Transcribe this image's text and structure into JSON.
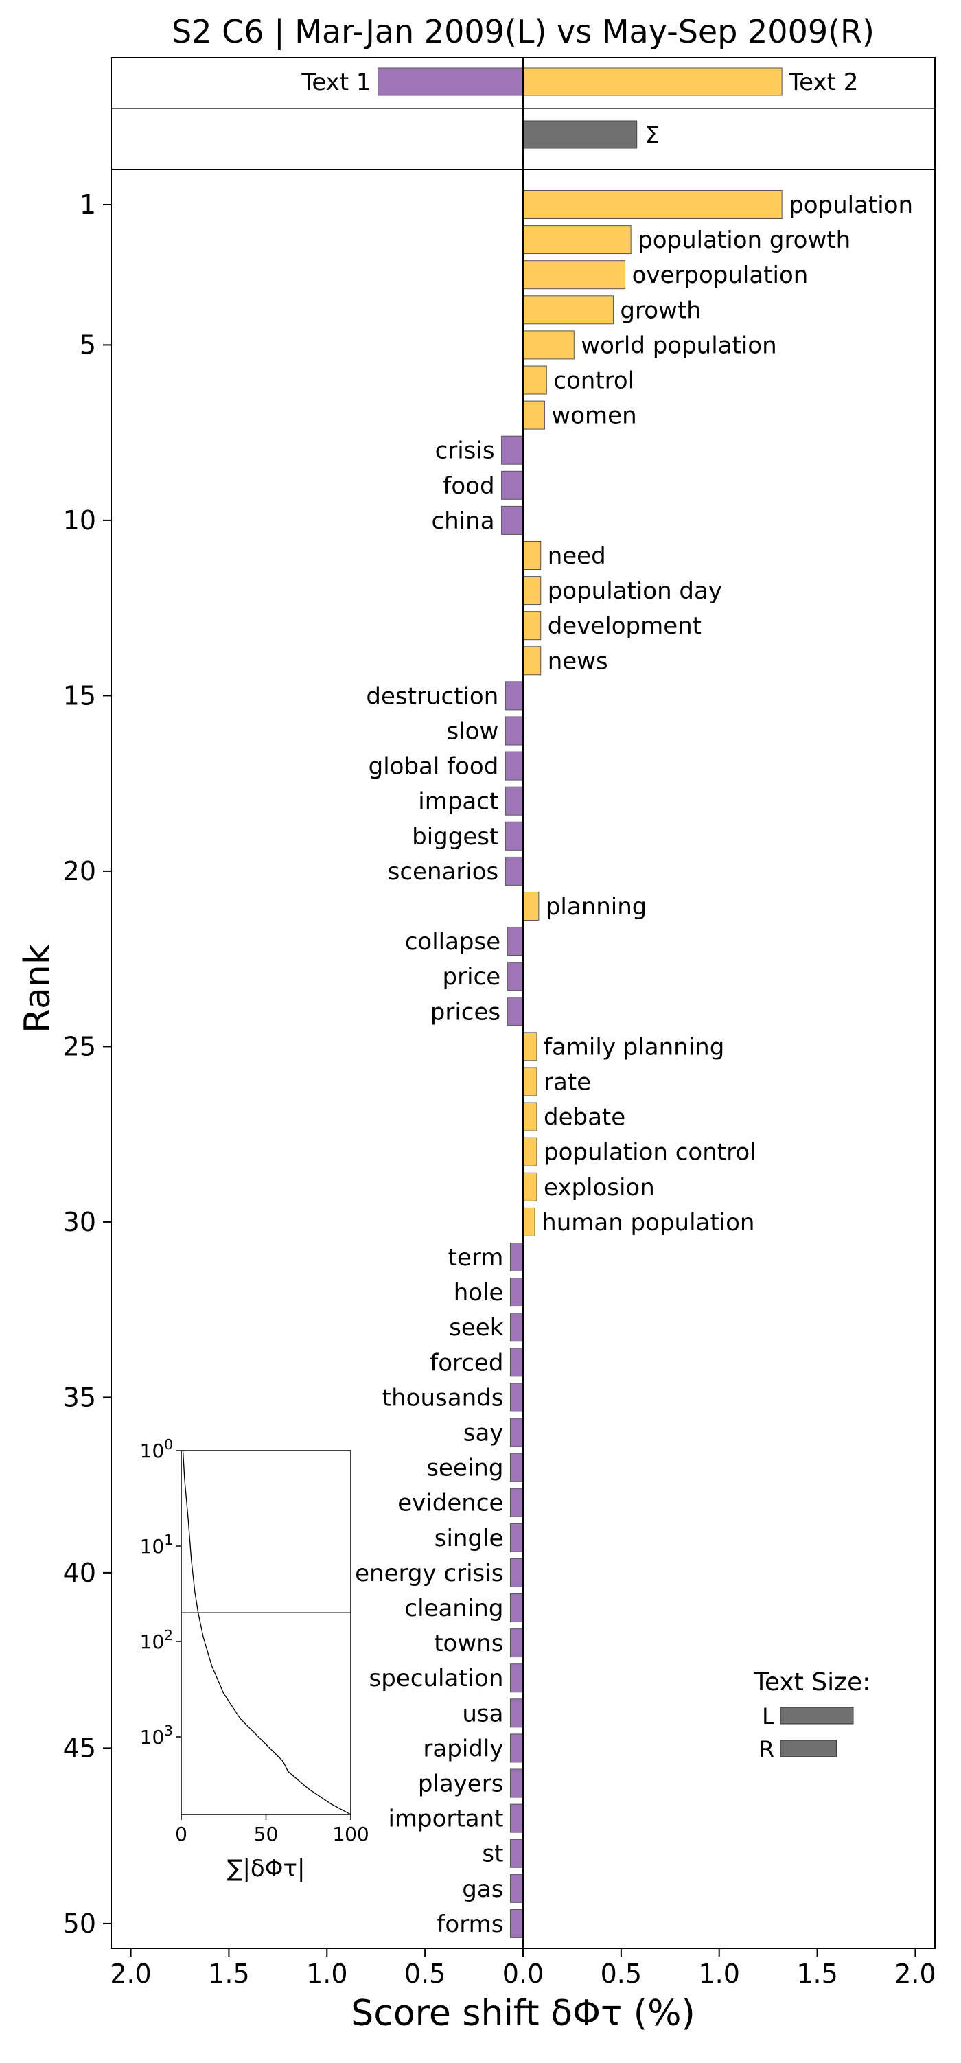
{
  "chart_data": {
    "type": "bar",
    "title": "S2 C6 | Mar-Jan 2009(L) vs May-Sep 2009(R)",
    "xlabel": "Score shift δΦτ (%)",
    "ylabel": "Rank",
    "xlim": [
      -2.1,
      2.1
    ],
    "x_ticks": [
      -2.0,
      -1.5,
      -1.0,
      -0.5,
      0.0,
      0.5,
      1.0,
      1.5,
      2.0
    ],
    "x_tick_labels": [
      "2.0",
      "1.5",
      "1.0",
      "0.5",
      "0.0",
      "0.5",
      "1.0",
      "1.5",
      "2.0"
    ],
    "y_ticks": [
      1,
      5,
      10,
      15,
      20,
      25,
      30,
      35,
      40,
      45,
      50
    ],
    "colors": {
      "left": "#9e75b7",
      "right": "#ffcc5c",
      "sum": "#707070",
      "edge": "#555555"
    },
    "text_totals": [
      {
        "label": "Text 1",
        "value": -0.74,
        "side": "left"
      },
      {
        "label": "Text 2",
        "value": 1.32,
        "side": "right"
      }
    ],
    "sum_bar": {
      "label": "Σ",
      "value": 0.58
    },
    "words": [
      {
        "rank": 1,
        "word": "population",
        "value": 1.32
      },
      {
        "rank": 2,
        "word": "population growth",
        "value": 0.55
      },
      {
        "rank": 3,
        "word": "overpopulation",
        "value": 0.52
      },
      {
        "rank": 4,
        "word": "growth",
        "value": 0.46
      },
      {
        "rank": 5,
        "word": "world population",
        "value": 0.26
      },
      {
        "rank": 6,
        "word": "control",
        "value": 0.12
      },
      {
        "rank": 7,
        "word": "women",
        "value": 0.11
      },
      {
        "rank": 8,
        "word": "crisis",
        "value": -0.11
      },
      {
        "rank": 9,
        "word": "food",
        "value": -0.11
      },
      {
        "rank": 10,
        "word": "china",
        "value": -0.11
      },
      {
        "rank": 11,
        "word": "need",
        "value": 0.09
      },
      {
        "rank": 12,
        "word": "population day",
        "value": 0.09
      },
      {
        "rank": 13,
        "word": "development",
        "value": 0.09
      },
      {
        "rank": 14,
        "word": "news",
        "value": 0.09
      },
      {
        "rank": 15,
        "word": "destruction",
        "value": -0.09
      },
      {
        "rank": 16,
        "word": "slow",
        "value": -0.09
      },
      {
        "rank": 17,
        "word": "global food",
        "value": -0.09
      },
      {
        "rank": 18,
        "word": "impact",
        "value": -0.09
      },
      {
        "rank": 19,
        "word": "biggest",
        "value": -0.09
      },
      {
        "rank": 20,
        "word": "scenarios",
        "value": -0.09
      },
      {
        "rank": 21,
        "word": "planning",
        "value": 0.08
      },
      {
        "rank": 22,
        "word": "collapse",
        "value": -0.08
      },
      {
        "rank": 23,
        "word": "price",
        "value": -0.08
      },
      {
        "rank": 24,
        "word": "prices",
        "value": -0.08
      },
      {
        "rank": 25,
        "word": "family planning",
        "value": 0.07
      },
      {
        "rank": 26,
        "word": "rate",
        "value": 0.07
      },
      {
        "rank": 27,
        "word": "debate",
        "value": 0.07
      },
      {
        "rank": 28,
        "word": "population control",
        "value": 0.07
      },
      {
        "rank": 29,
        "word": "explosion",
        "value": 0.07
      },
      {
        "rank": 30,
        "word": "human population",
        "value": 0.06
      },
      {
        "rank": 31,
        "word": "term",
        "value": -0.065
      },
      {
        "rank": 32,
        "word": "hole",
        "value": -0.065
      },
      {
        "rank": 33,
        "word": "seek",
        "value": -0.065
      },
      {
        "rank": 34,
        "word": "forced",
        "value": -0.065
      },
      {
        "rank": 35,
        "word": "thousands",
        "value": -0.065
      },
      {
        "rank": 36,
        "word": "say",
        "value": -0.065
      },
      {
        "rank": 37,
        "word": "seeing",
        "value": -0.065
      },
      {
        "rank": 38,
        "word": "evidence",
        "value": -0.065
      },
      {
        "rank": 39,
        "word": "single",
        "value": -0.065
      },
      {
        "rank": 40,
        "word": "energy crisis",
        "value": -0.065
      },
      {
        "rank": 41,
        "word": "cleaning",
        "value": -0.065
      },
      {
        "rank": 42,
        "word": "towns",
        "value": -0.065
      },
      {
        "rank": 43,
        "word": "speculation",
        "value": -0.065
      },
      {
        "rank": 44,
        "word": "usa",
        "value": -0.065
      },
      {
        "rank": 45,
        "word": "rapidly",
        "value": -0.065
      },
      {
        "rank": 46,
        "word": "players",
        "value": -0.065
      },
      {
        "rank": 47,
        "word": "important",
        "value": -0.065
      },
      {
        "rank": 48,
        "word": "st",
        "value": -0.065
      },
      {
        "rank": 49,
        "word": "gas",
        "value": -0.065
      },
      {
        "rank": 50,
        "word": "forms",
        "value": -0.065
      }
    ],
    "inset": {
      "xlabel": "∑|δΦτ|",
      "x_ticks": [
        0,
        50,
        100
      ],
      "x_tick_labels": [
        "0",
        "50",
        "100"
      ],
      "y_tick_labels": [
        "10",
        "10",
        "10",
        "10"
      ],
      "y_tick_exponents": [
        "0",
        "1",
        "2",
        "3"
      ],
      "cutoff_rank": 50,
      "curve": [
        {
          "cumulative_percent": 1,
          "rank": 1
        },
        {
          "cumulative_percent": 2,
          "rank": 2
        },
        {
          "cumulative_percent": 4,
          "rank": 5
        },
        {
          "cumulative_percent": 6,
          "rank": 14
        },
        {
          "cumulative_percent": 8,
          "rank": 30
        },
        {
          "cumulative_percent": 10,
          "rank": 50
        },
        {
          "cumulative_percent": 13,
          "rank": 90
        },
        {
          "cumulative_percent": 18,
          "rank": 180
        },
        {
          "cumulative_percent": 25,
          "rank": 350
        },
        {
          "cumulative_percent": 35,
          "rank": 650
        },
        {
          "cumulative_percent": 50,
          "rank": 1200
        },
        {
          "cumulative_percent": 60,
          "rank": 1800
        },
        {
          "cumulative_percent": 63,
          "rank": 2300
        },
        {
          "cumulative_percent": 75,
          "rank": 3500
        },
        {
          "cumulative_percent": 88,
          "rank": 5000
        },
        {
          "cumulative_percent": 100,
          "rank": 6500
        }
      ]
    },
    "legend": {
      "title": "Text Size:",
      "placement": "bottom-right",
      "entries": [
        {
          "label": "L",
          "value": 1.0
        },
        {
          "label": "R",
          "value": 0.77
        }
      ]
    }
  }
}
